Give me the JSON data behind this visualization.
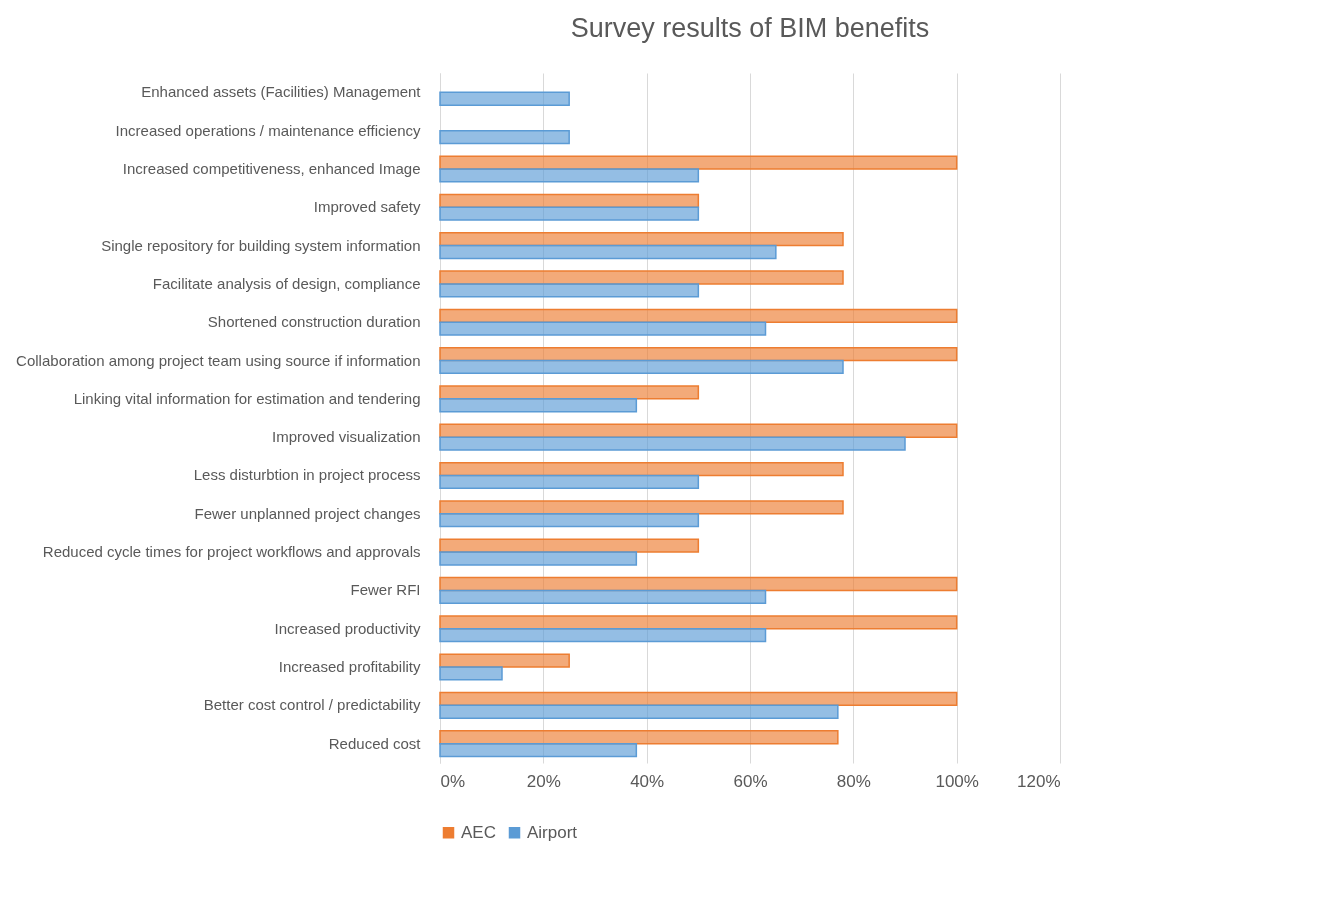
{
  "chart_data": {
    "type": "bar",
    "orientation": "horizontal",
    "title": "Survey  results  of  BIM  benefits",
    "categories": [
      "Enhanced assets (Facilities) Management",
      "Increased operations / maintenance efficiency",
      "Increased competitiveness, enhanced Image",
      "Improved safety",
      "Single repository for building system information",
      "Facilitate analysis of design, compliance",
      "Shortened construction duration",
      "Collaboration among project team using source if information",
      "Linking vital information for estimation and tendering",
      "Improved visualization",
      "Less disturbtion in project process",
      "Fewer unplanned project changes",
      "Reduced cycle times for project workflows and approvals",
      "Fewer RFI",
      "Increased productivity",
      "Increased profitability",
      "Better cost control / predictability",
      "Reduced cost"
    ],
    "series": [
      {
        "name": "AEC",
        "color": "#ed7d31",
        "values": [
          null,
          null,
          100,
          50,
          78,
          78,
          100,
          100,
          50,
          100,
          78,
          78,
          50,
          100,
          100,
          25,
          100,
          77
        ]
      },
      {
        "name": "Airport",
        "color": "#5b9bd5",
        "values": [
          25,
          25,
          50,
          50,
          65,
          50,
          63,
          78,
          38,
          90,
          50,
          50,
          38,
          63,
          63,
          12,
          77,
          38
        ]
      }
    ],
    "xlim": [
      0,
      120
    ],
    "xticks": [
      {
        "value": 0,
        "label": "0%"
      },
      {
        "value": 20,
        "label": "20%"
      },
      {
        "value": 40,
        "label": "40%"
      },
      {
        "value": 60,
        "label": "60%"
      },
      {
        "value": 80,
        "label": "80%"
      },
      {
        "value": 100,
        "label": "100%"
      },
      {
        "value": 120,
        "label": "120%"
      }
    ],
    "grid": "x",
    "legend": "bottom"
  }
}
